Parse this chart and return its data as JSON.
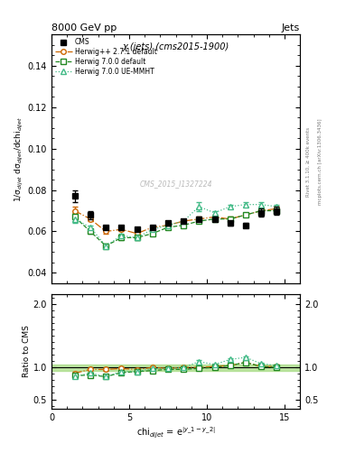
{
  "title_main": "χ (jets) (cms2015-1900)",
  "title_top_left": "8000 GeV pp",
  "title_top_right": "Jets",
  "right_label_top": "Rivet 3.1.10, ≥ 400k events",
  "right_label_bot": "mcplots.cern.ch [arXiv:1306.3436]",
  "watermark": "CMS_2015_I1327224",
  "xlabel": "chi$_{dijet}$ = e$^{|y\\_1 - y\\_2|}$",
  "ylabel_main": "1/σ$_{dijet}$ dσ$_{dijet}$/dchi$_{dijet}$",
  "ylabel_ratio": "Ratio to CMS",
  "xlim": [
    0,
    16
  ],
  "ylim_main": [
    0.035,
    0.155
  ],
  "ylim_ratio": [
    0.35,
    2.15
  ],
  "yticks_main": [
    0.04,
    0.06,
    0.08,
    0.1,
    0.12,
    0.14
  ],
  "yticks_ratio": [
    0.5,
    1.0,
    2.0
  ],
  "xticks": [
    0,
    5,
    10,
    15
  ],
  "cms_x": [
    1.5,
    2.5,
    3.5,
    4.5,
    5.5,
    6.5,
    7.5,
    8.5,
    9.5,
    10.5,
    11.5,
    12.5,
    13.5,
    14.5
  ],
  "cms_y": [
    0.077,
    0.068,
    0.062,
    0.062,
    0.061,
    0.062,
    0.064,
    0.065,
    0.066,
    0.066,
    0.064,
    0.063,
    0.069,
    0.07
  ],
  "cms_yerr": [
    0.003,
    0.002,
    0.001,
    0.001,
    0.001,
    0.001,
    0.001,
    0.001,
    0.001,
    0.001,
    0.001,
    0.001,
    0.002,
    0.002
  ],
  "hpp_x": [
    1.5,
    2.5,
    3.5,
    4.5,
    5.5,
    6.5,
    7.5,
    8.5,
    9.5,
    10.5,
    11.5,
    12.5,
    13.5,
    14.5
  ],
  "hpp_y": [
    0.07,
    0.066,
    0.06,
    0.061,
    0.059,
    0.062,
    0.063,
    0.065,
    0.066,
    0.067,
    0.066,
    0.068,
    0.07,
    0.071
  ],
  "hpp_yerr": [
    0.002,
    0.001,
    0.001,
    0.001,
    0.001,
    0.001,
    0.001,
    0.001,
    0.001,
    0.001,
    0.001,
    0.001,
    0.001,
    0.001
  ],
  "h70_x": [
    1.5,
    2.5,
    3.5,
    4.5,
    5.5,
    6.5,
    7.5,
    8.5,
    9.5,
    10.5,
    11.5,
    12.5,
    13.5,
    14.5
  ],
  "h70_y": [
    0.067,
    0.06,
    0.053,
    0.057,
    0.057,
    0.059,
    0.062,
    0.063,
    0.065,
    0.066,
    0.066,
    0.068,
    0.07,
    0.07
  ],
  "h70_yerr": [
    0.002,
    0.001,
    0.001,
    0.001,
    0.001,
    0.001,
    0.001,
    0.001,
    0.001,
    0.001,
    0.001,
    0.001,
    0.001,
    0.001
  ],
  "hue_x": [
    1.5,
    2.5,
    3.5,
    4.5,
    5.5,
    6.5,
    7.5,
    8.5,
    9.5,
    10.5,
    11.5,
    12.5,
    13.5,
    14.5
  ],
  "hue_y": [
    0.066,
    0.062,
    0.053,
    0.058,
    0.057,
    0.061,
    0.063,
    0.065,
    0.072,
    0.069,
    0.072,
    0.073,
    0.073,
    0.072
  ],
  "hue_yerr": [
    0.002,
    0.001,
    0.001,
    0.001,
    0.001,
    0.001,
    0.001,
    0.001,
    0.002,
    0.001,
    0.001,
    0.001,
    0.001,
    0.001
  ],
  "color_cms": "#000000",
  "color_hpp": "#cc6600",
  "color_h70": "#228822",
  "color_hue": "#44bb88",
  "color_ref_band": "#aadd88",
  "bg_color": "#ffffff"
}
